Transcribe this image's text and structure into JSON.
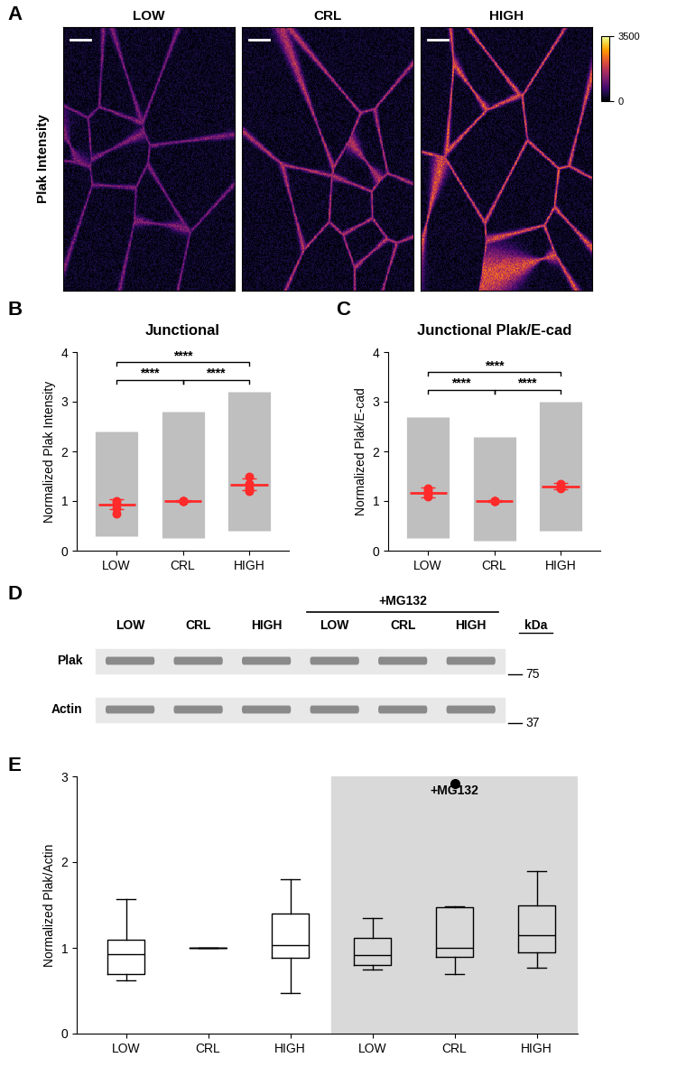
{
  "chart_data": [
    {
      "type": "image",
      "label": "A",
      "title": "Plak Intensity",
      "categories": [
        "LOW",
        "CRL",
        "HIGH"
      ],
      "colorbar": {
        "range": [
          0,
          3500
        ],
        "ticks": [
          0,
          3500
        ]
      }
    },
    {
      "type": "scatter",
      "label": "B",
      "title": "Junctional",
      "categories": [
        "LOW",
        "CRL",
        "HIGH"
      ],
      "y_label": "Normalized Plak Intensity",
      "ylim": [
        0,
        4
      ],
      "yticks": [
        0,
        1,
        2,
        3,
        4
      ],
      "color": "#ff2a2a",
      "replicates": [
        [
          0.85,
          1.0,
          0.75,
          0.95
        ],
        [
          1.0,
          1.0,
          1.0,
          1.0
        ],
        [
          1.25,
          1.5,
          1.35,
          1.2
        ]
      ],
      "mean": [
        0.93,
        1.0,
        1.33
      ],
      "error": [
        0.1,
        0.01,
        0.12
      ],
      "range": [
        [
          0.3,
          2.4
        ],
        [
          0.25,
          2.8
        ],
        [
          0.4,
          3.2
        ]
      ],
      "comparisons": [
        {
          "from": "LOW",
          "to": "CRL",
          "label": "****"
        },
        {
          "from": "CRL",
          "to": "HIGH",
          "label": "****"
        },
        {
          "from": "LOW",
          "to": "HIGH",
          "label": "****"
        }
      ]
    },
    {
      "type": "scatter",
      "label": "C",
      "title": "Junctional Plak/E-cad",
      "categories": [
        "LOW",
        "CRL",
        "HIGH"
      ],
      "y_label": "Normalized Plak/E-cad",
      "ylim": [
        0,
        4
      ],
      "yticks": [
        0,
        1,
        2,
        3,
        4
      ],
      "color": "#ff2a2a",
      "replicates": [
        [
          1.1,
          1.25,
          1.15,
          1.2
        ],
        [
          1.0,
          1.0,
          1.0,
          1.0
        ],
        [
          1.25,
          1.3,
          1.35,
          1.28
        ]
      ],
      "mean": [
        1.17,
        1.0,
        1.3
      ],
      "error": [
        0.1,
        0.01,
        0.06
      ],
      "range": [
        [
          0.25,
          2.7
        ],
        [
          0.2,
          2.3
        ],
        [
          0.4,
          3.0
        ]
      ],
      "comparisons": [
        {
          "from": "LOW",
          "to": "CRL",
          "label": "****"
        },
        {
          "from": "CRL",
          "to": "HIGH",
          "label": "****"
        },
        {
          "from": "LOW",
          "to": "HIGH",
          "label": "****"
        }
      ]
    },
    {
      "type": "blot",
      "label": "D",
      "lanes": [
        "LOW",
        "CRL",
        "HIGH",
        "LOW",
        "CRL",
        "HIGH"
      ],
      "group": {
        "label": "+MG132",
        "from": 3,
        "to": 5
      },
      "unit": "kDa",
      "bands": [
        {
          "name": "Plak",
          "kda": 75
        },
        {
          "name": "Actin",
          "kda": 37
        }
      ]
    },
    {
      "type": "box",
      "label": "E",
      "categories": [
        "LOW",
        "CRL",
        "HIGH",
        "LOW",
        "CRL",
        "HIGH"
      ],
      "y_label": "Normalized Plak/Actin",
      "ylim": [
        0,
        3
      ],
      "yticks": [
        0,
        1,
        2,
        3
      ],
      "group": {
        "label": "+MG132",
        "from": 3,
        "to": 5
      },
      "boxes": [
        {
          "whislo": 0.62,
          "q1": 0.7,
          "med": 0.93,
          "q3": 1.1,
          "whishi": 1.57,
          "fliers": []
        },
        {
          "whislo": 1.0,
          "q1": 1.0,
          "med": 1.0,
          "q3": 1.0,
          "whishi": 1.0,
          "fliers": []
        },
        {
          "whislo": 0.47,
          "q1": 0.88,
          "med": 1.03,
          "q3": 1.4,
          "whishi": 1.8,
          "fliers": []
        },
        {
          "whislo": 0.75,
          "q1": 0.8,
          "med": 0.92,
          "q3": 1.12,
          "whishi": 1.35,
          "fliers": []
        },
        {
          "whislo": 0.7,
          "q1": 0.9,
          "med": 1.0,
          "q3": 1.47,
          "whishi": 1.48,
          "fliers": [
            2.92
          ]
        },
        {
          "whislo": 0.77,
          "q1": 0.95,
          "med": 1.15,
          "q3": 1.5,
          "whishi": 1.9,
          "fliers": []
        }
      ]
    }
  ]
}
